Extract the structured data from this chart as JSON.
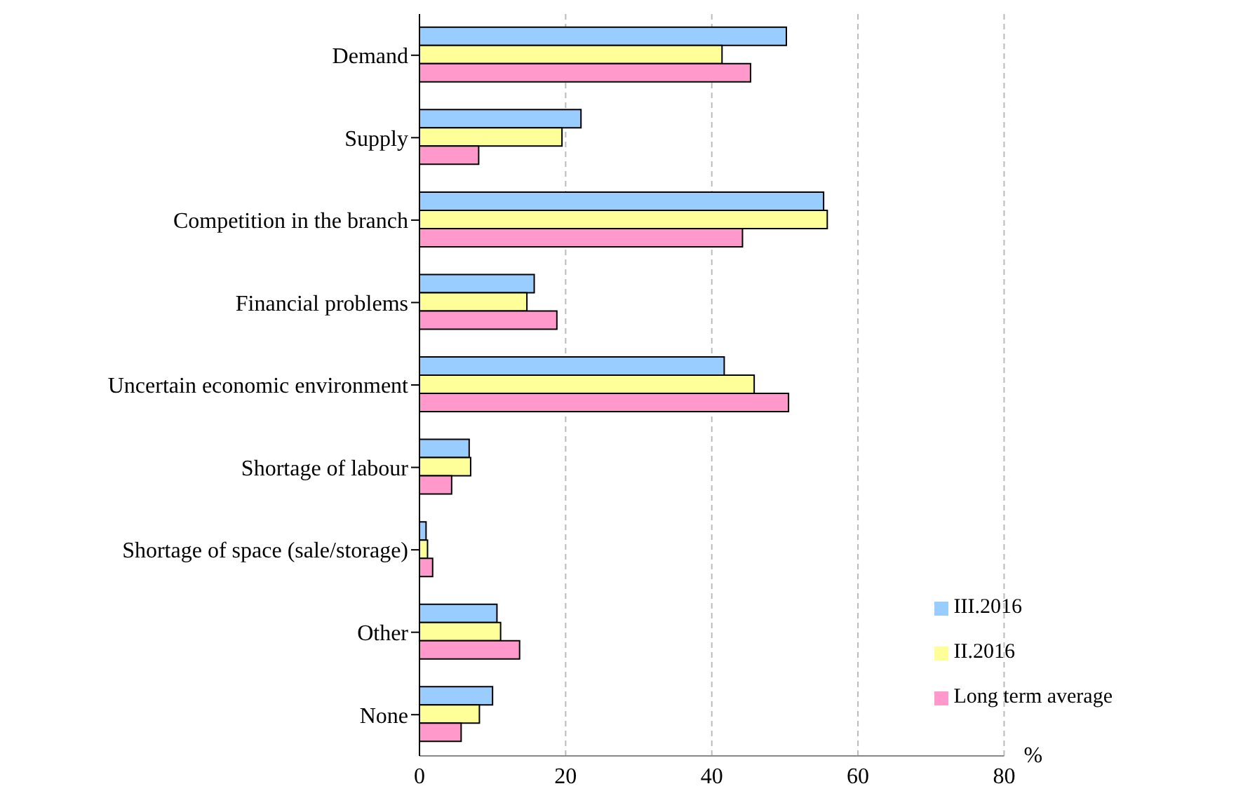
{
  "chart_data": {
    "type": "bar",
    "orientation": "horizontal",
    "xlabel": "%",
    "categories": [
      "Demand",
      "Supply",
      "Competition in the branch",
      "Financial problems",
      "Uncertain economic environment",
      "Shortage of labour",
      "Shortage of space (sale/storage)",
      "Other",
      "None"
    ],
    "series": [
      {
        "name": "III.2016",
        "color": "#99ccff",
        "values": [
          50.2,
          22.1,
          55.3,
          15.7,
          41.7,
          6.8,
          0.9,
          10.6,
          10.0
        ]
      },
      {
        "name": "II.2016",
        "color": "#ffff99",
        "values": [
          41.4,
          19.5,
          55.8,
          14.7,
          45.8,
          7.0,
          1.1,
          11.1,
          8.2
        ]
      },
      {
        "name": "Long term average",
        "color": "#ff99cc",
        "values": [
          45.3,
          8.1,
          44.2,
          18.8,
          50.5,
          4.4,
          1.8,
          13.7,
          5.7
        ]
      }
    ],
    "xlim": [
      0,
      80
    ],
    "xticks": [
      0,
      20,
      40,
      60,
      80
    ],
    "grid": "x",
    "legend": "bottom right"
  }
}
